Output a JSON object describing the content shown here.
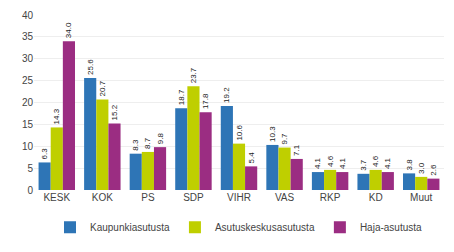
{
  "chart_data": {
    "type": "bar",
    "categories": [
      "KESK",
      "KOK",
      "PS",
      "SDP",
      "VIHR",
      "VAS",
      "RKP",
      "KD",
      "Muut"
    ],
    "series": [
      {
        "name": "Kaupunkiasutusta",
        "color": "#2E75B6",
        "values": [
          6.3,
          25.6,
          8.3,
          18.7,
          19.2,
          10.3,
          4.1,
          3.7,
          3.8
        ],
        "value_labels": [
          "6.3",
          "25.6",
          "8.3",
          "18.7",
          "19.2",
          "10.3",
          "4.1",
          "3.7",
          "3.8"
        ]
      },
      {
        "name": "Asutuskeskusasutusta",
        "color": "#BFCF00",
        "values": [
          14.3,
          20.7,
          8.7,
          23.7,
          10.6,
          9.7,
          4.6,
          4.6,
          3.0
        ],
        "value_labels": [
          "14.3",
          "20.7",
          "8.7",
          "23.7",
          "10.6",
          "9.7",
          "4.6",
          "4.6",
          "3.0"
        ]
      },
      {
        "name": "Haja-asutusta",
        "color": "#9B2D82",
        "values": [
          34.0,
          15.2,
          9.8,
          17.8,
          5.4,
          7.1,
          4.1,
          4.1,
          2.6
        ],
        "value_labels": [
          "34.0",
          "15.2",
          "9.8",
          "17.8",
          "5.4",
          "7.1",
          "4.1",
          "4.1",
          "2.6"
        ]
      }
    ],
    "ylim": [
      0,
      40
    ],
    "yticks": [
      0,
      5,
      10,
      15,
      20,
      25,
      30,
      35,
      40
    ],
    "grid": true,
    "data_labels": true,
    "legend": "bottom"
  }
}
